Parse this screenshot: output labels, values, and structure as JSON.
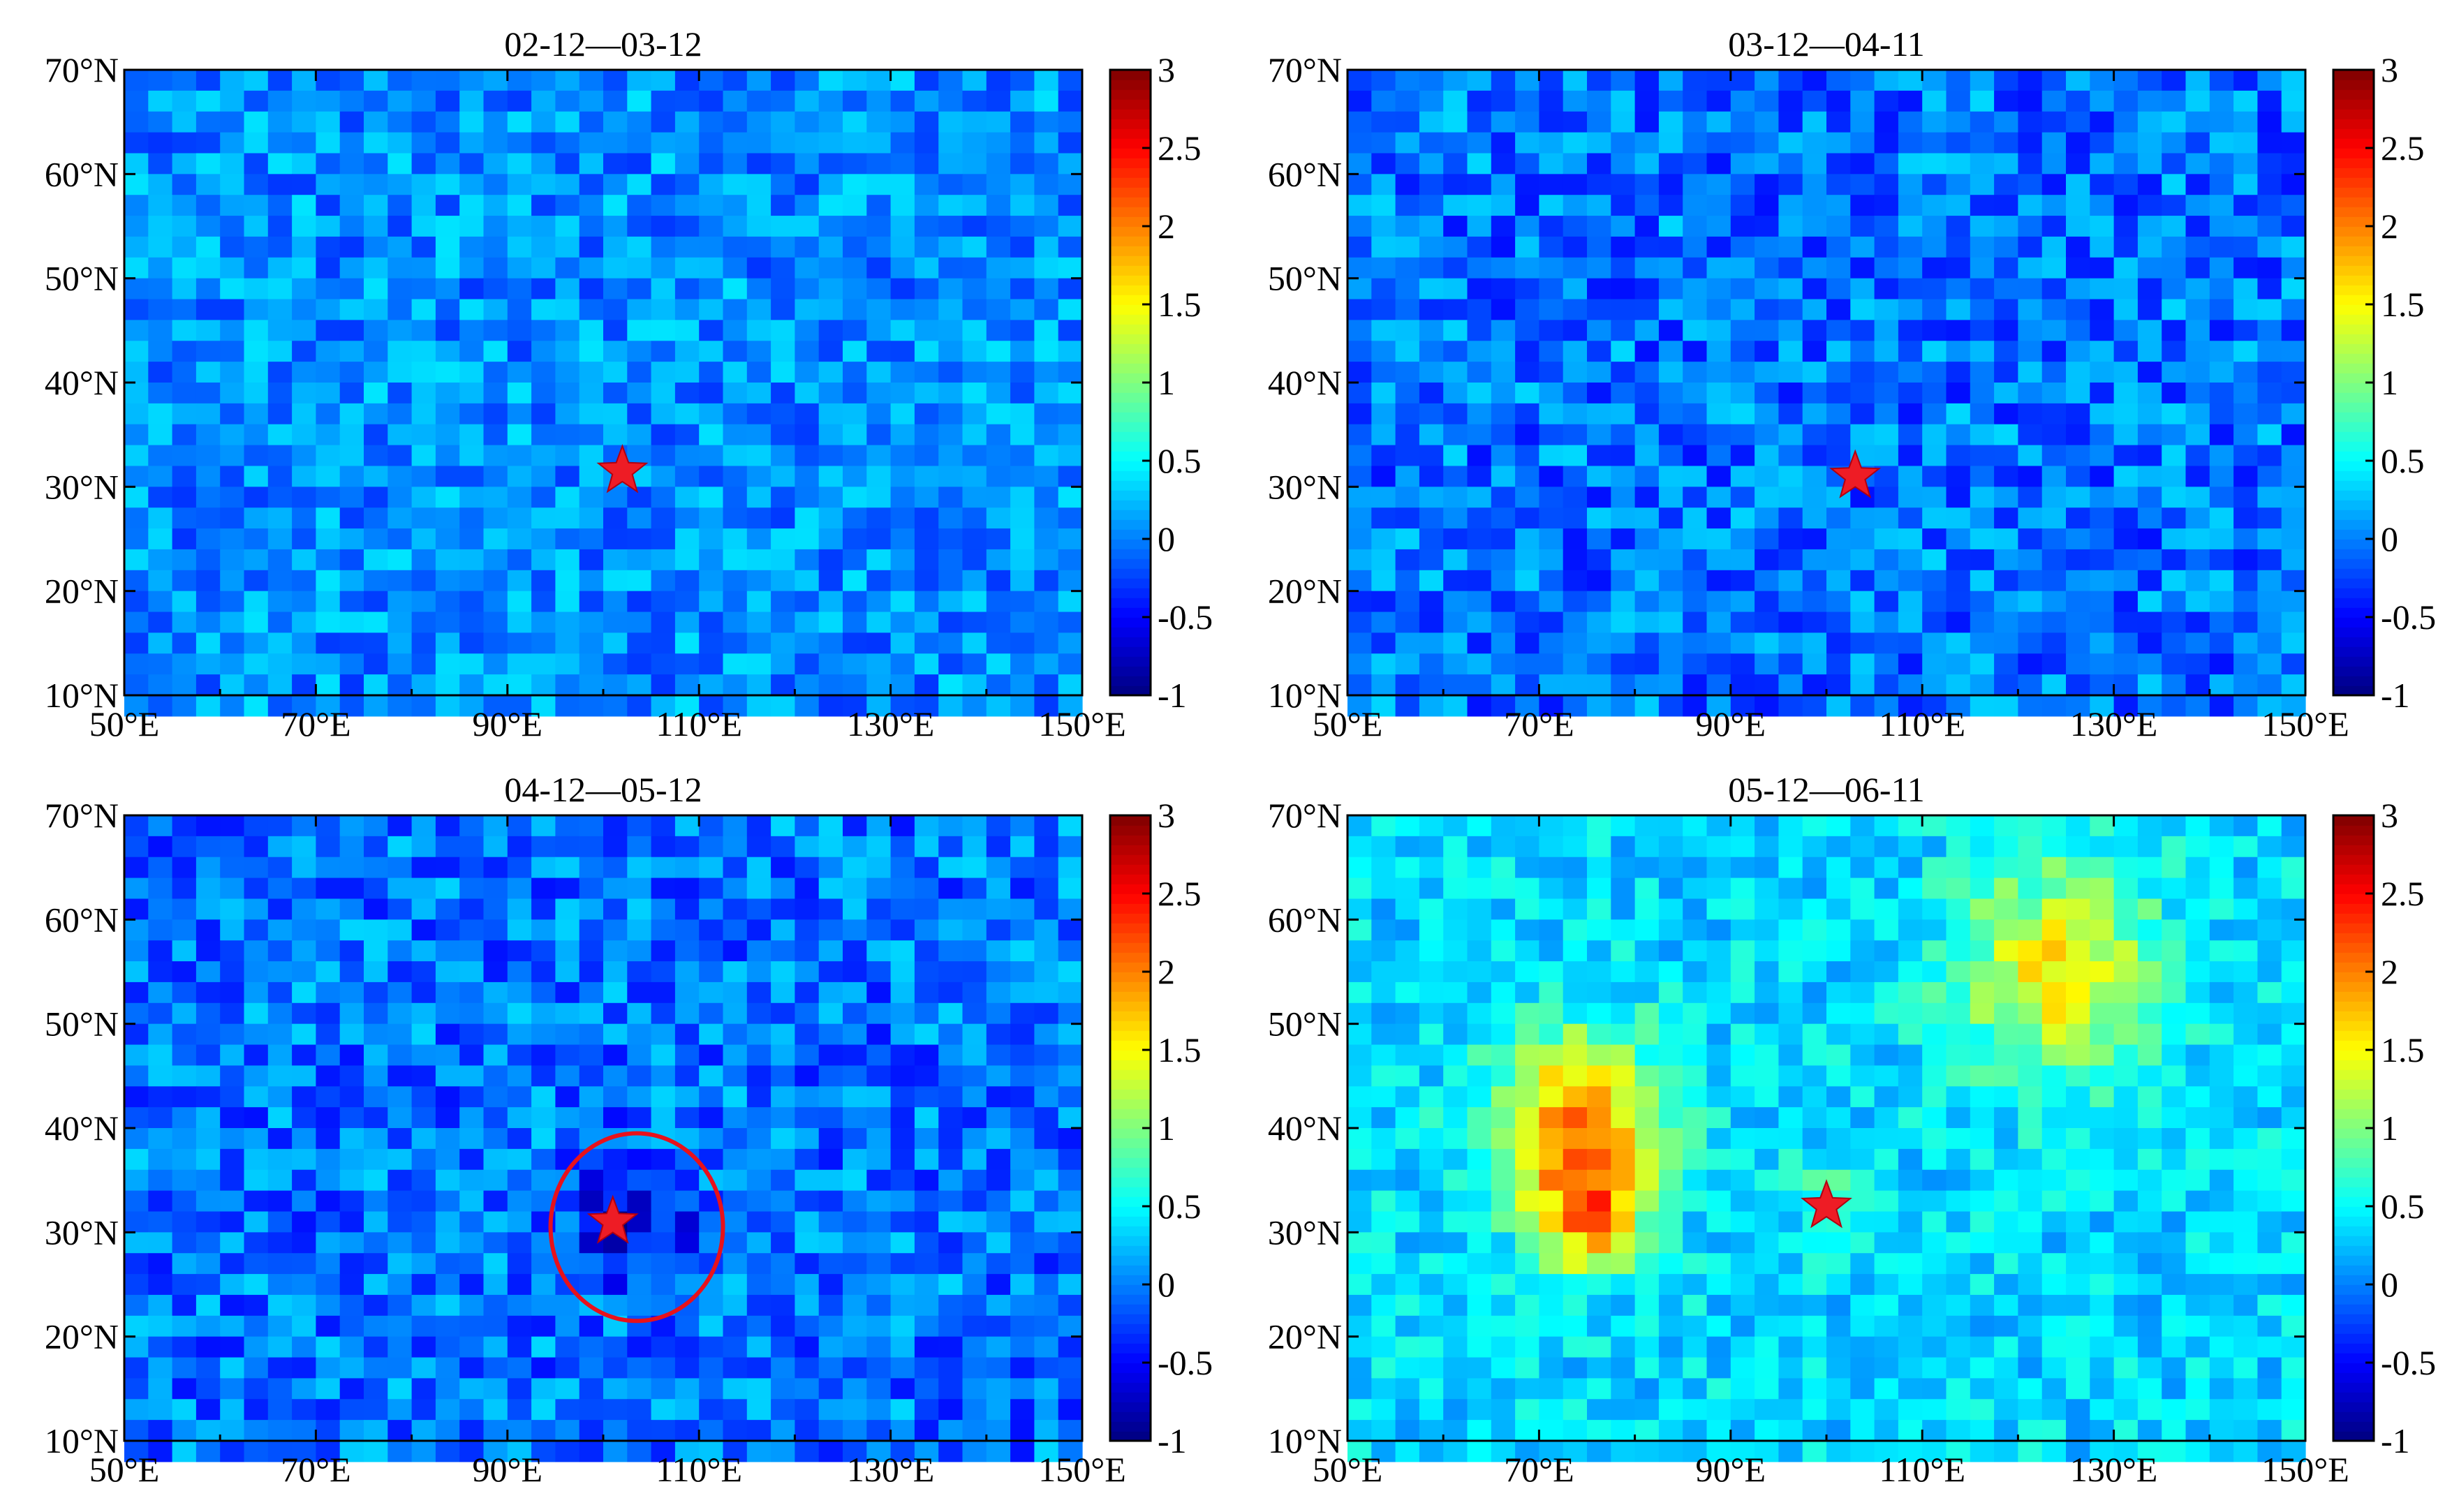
{
  "chart_data": [
    {
      "type": "heatmap",
      "title": "02-12—03-12",
      "x_ticks": [
        "50°E",
        "70°E",
        "90°E",
        "110°E",
        "130°E",
        "150°E"
      ],
      "y_ticks": [
        "10°N",
        "20°N",
        "30°N",
        "40°N",
        "50°N",
        "60°N",
        "70°N"
      ],
      "xlim": [
        50,
        150
      ],
      "ylim": [
        10,
        70
      ],
      "colorbar": {
        "range": [
          -1,
          3
        ],
        "ticks": [
          "3",
          "2.5",
          "2",
          "1.5",
          "1",
          "0.5",
          "0",
          "-0.5",
          "-1"
        ]
      },
      "grid_resolution_deg": [
        2.5,
        2.0
      ],
      "field": {
        "baseline": 0.05,
        "noise": 0.35,
        "seed": 11,
        "anomalies": []
      },
      "epicenter": {
        "lon": 102,
        "lat": 31.5
      }
    },
    {
      "type": "heatmap",
      "title": "03-12—04-11",
      "x_ticks": [
        "50°E",
        "70°E",
        "90°E",
        "110°E",
        "130°E",
        "150°E"
      ],
      "y_ticks": [
        "10°N",
        "20°N",
        "30°N",
        "40°N",
        "50°N",
        "60°N",
        "70°N"
      ],
      "xlim": [
        50,
        150
      ],
      "ylim": [
        10,
        70
      ],
      "colorbar": {
        "range": [
          -1,
          3
        ],
        "ticks": [
          "3",
          "2.5",
          "2",
          "1.5",
          "1",
          "0.5",
          "0",
          "-0.5",
          "-1"
        ]
      },
      "grid_resolution_deg": [
        2.5,
        2.0
      ],
      "field": {
        "baseline": -0.05,
        "noise": 0.4,
        "seed": 23,
        "anomalies": []
      },
      "epicenter": {
        "lon": 103,
        "lat": 31
      }
    },
    {
      "type": "heatmap",
      "title": "04-12—05-12",
      "x_ticks": [
        "50°E",
        "70°E",
        "90°E",
        "110°E",
        "130°E",
        "150°E"
      ],
      "y_ticks": [
        "10°N",
        "20°N",
        "30°N",
        "40°N",
        "50°N",
        "60°N",
        "70°N"
      ],
      "xlim": [
        50,
        150
      ],
      "ylim": [
        10,
        70
      ],
      "colorbar": {
        "range": [
          -1,
          3
        ],
        "ticks": [
          "3",
          "2.5",
          "2",
          "1.5",
          "1",
          "0.5",
          "0",
          "-0.5",
          "-1"
        ]
      },
      "grid_resolution_deg": [
        2.5,
        2.0
      ],
      "field": {
        "baseline": -0.05,
        "noise": 0.4,
        "seed": 37,
        "anomalies": [
          {
            "lon": 102.5,
            "lat": 31,
            "amplitude": -0.65,
            "radius": 6
          }
        ]
      },
      "epicenter": {
        "lon": 101,
        "lat": 31
      },
      "highlight_circle": {
        "lon": 103.5,
        "lat": 30.5,
        "radius": 9
      }
    },
    {
      "type": "heatmap",
      "title": "05-12—06-11",
      "x_ticks": [
        "50°E",
        "70°E",
        "90°E",
        "110°E",
        "130°E",
        "150°E"
      ],
      "y_ticks": [
        "10°N",
        "20°N",
        "30°N",
        "40°N",
        "50°N",
        "60°N",
        "70°N"
      ],
      "xlim": [
        50,
        150
      ],
      "ylim": [
        10,
        70
      ],
      "colorbar": {
        "range": [
          -1,
          3
        ],
        "ticks": [
          "3",
          "2.5",
          "2",
          "1.5",
          "1",
          "0.5",
          "0",
          "-0.5",
          "-1"
        ]
      },
      "grid_resolution_deg": [
        2.5,
        2.0
      ],
      "field": {
        "baseline": 0.35,
        "noise": 0.3,
        "seed": 51,
        "anomalies": [
          {
            "lon": 74,
            "lat": 40,
            "amplitude": 1.6,
            "radius": 9
          },
          {
            "lon": 75,
            "lat": 31,
            "amplitude": 1.2,
            "radius": 5
          },
          {
            "lon": 124,
            "lat": 55,
            "amplitude": 1.2,
            "radius": 10
          },
          {
            "lon": 100,
            "lat": 33,
            "amplitude": 0.35,
            "radius": 4
          }
        ]
      },
      "epicenter": {
        "lon": 100,
        "lat": 32.5
      }
    }
  ]
}
